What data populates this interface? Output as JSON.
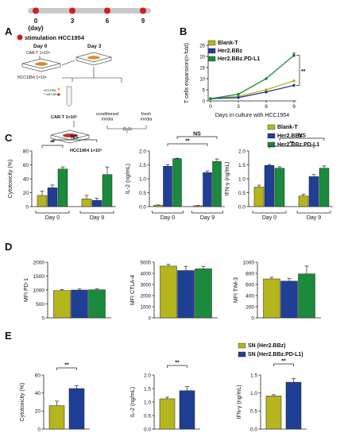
{
  "colors": {
    "blank": "#b5b51e",
    "her2": "#1f3f96",
    "pdl1": "#1a8a3c",
    "red": "#cc1f1f",
    "gray": "#c9c9c9"
  },
  "panels": {
    "A": "A",
    "B": "B",
    "C": "C",
    "D": "D",
    "E": "E"
  },
  "timeline": {
    "ticks": [
      "0",
      "3",
      "6",
      "9"
    ],
    "unit": "(day)"
  },
  "schematic": {
    "stim_label": "stimulation HCC1954",
    "day0": "Day 0",
    "day3": "Day 3",
    "cart": "CAR-T 1×10⁵",
    "hcc": "HCC1954 1×10⁶",
    "tiny1": "HCC1954",
    "tiny2": "T cell CAR-T",
    "cart2": "CAR-T 1×10⁵",
    "cond": "conditioned\nmedia",
    "fresh": "fresh\nmedia",
    "ratio": "(1:1)",
    "hcc2": "HCC1954 1×10⁶"
  },
  "legends": {
    "B": [
      "Blank-T",
      "Her2.BBz",
      "Her2.BBz.PD-L1"
    ],
    "C": [
      "Blank-T",
      "Her2.BBz",
      "Her2.BBz.PD-L1"
    ],
    "E": [
      "SN (Her2.BBz)",
      "SN (Her2.BBz.PD-L1)"
    ]
  },
  "sig": {
    "dstar": "**",
    "ns": "NS"
  },
  "chart_data": [
    {
      "id": "B",
      "type": "line",
      "x": [
        0,
        3,
        6,
        9
      ],
      "xticks": [
        "0",
        "3",
        "6",
        "9"
      ],
      "yticks": [
        "0",
        "5",
        "10",
        "15",
        "20",
        "25"
      ],
      "xlabel": "Days in culture with HCC1954",
      "ylabel": "T cells expansion(n-fold)",
      "ylim": [
        0,
        25
      ],
      "series": [
        {
          "name": "Blank-T",
          "values": [
            1,
            2,
            5,
            9
          ]
        },
        {
          "name": "Her2.BBz",
          "values": [
            1,
            1.5,
            4,
            7
          ]
        },
        {
          "name": "Her2.BBz.PD-L1",
          "values": [
            1,
            3,
            10,
            20.5
          ]
        }
      ]
    },
    {
      "id": "C1",
      "type": "bar",
      "ylabel": "Cytotoxicity (%)",
      "groups": [
        "Day 0",
        "Day 9"
      ],
      "ylim": [
        0,
        80
      ],
      "yticks": [
        "0",
        "20",
        "40",
        "60",
        "80"
      ],
      "series": [
        {
          "name": "Blank-T",
          "values": [
            16,
            11
          ],
          "err": [
            6,
            5
          ]
        },
        {
          "name": "Her2.BBz",
          "values": [
            27,
            9
          ],
          "err": [
            4,
            3
          ]
        },
        {
          "name": "Her2.BBz.PD-L1",
          "values": [
            54,
            46
          ],
          "err": [
            3,
            11
          ]
        }
      ]
    },
    {
      "id": "C2",
      "type": "bar",
      "ylabel": "IL-2 (ng/mL)",
      "groups": [
        "Day 0",
        "Day 9"
      ],
      "ylim": [
        0,
        2.0
      ],
      "yticks": [
        "0.0",
        "0.5",
        "1.0",
        "1.5",
        "2.0"
      ],
      "series": [
        {
          "name": "Blank-T",
          "values": [
            0.05,
            0.03
          ],
          "err": [
            0.01,
            0.01
          ]
        },
        {
          "name": "Her2.BBz",
          "values": [
            1.45,
            1.22
          ],
          "err": [
            0.06,
            0.06
          ]
        },
        {
          "name": "Her2.BBz.PD-L1",
          "values": [
            1.72,
            1.62
          ],
          "err": [
            0.02,
            0.09
          ]
        }
      ]
    },
    {
      "id": "C3",
      "type": "bar",
      "ylabel": "IFN-γ (ng/mL)",
      "groups": [
        "Day 0",
        "Day 9"
      ],
      "ylim": [
        0,
        2.0
      ],
      "yticks": [
        "0.0",
        "0.5",
        "1.0",
        "1.5",
        "2.0"
      ],
      "series": [
        {
          "name": "Blank-T",
          "values": [
            0.7,
            0.38
          ],
          "err": [
            0.07,
            0.06
          ]
        },
        {
          "name": "Her2.BBz",
          "values": [
            1.48,
            1.08
          ],
          "err": [
            0.03,
            0.07
          ]
        },
        {
          "name": "Her2.BBz.PD-L1",
          "values": [
            1.38,
            1.38
          ],
          "err": [
            0.05,
            0.08
          ]
        }
      ]
    },
    {
      "id": "D1",
      "type": "bar",
      "ylabel": "MFI PD-1",
      "ylim": [
        0,
        2000
      ],
      "yticks": [
        "0",
        "500",
        "1000",
        "1500",
        "2000"
      ],
      "series": [
        {
          "name": "Blank-T",
          "values": [
            980
          ],
          "err": [
            40
          ]
        },
        {
          "name": "Her2.BBz",
          "values": [
            1000
          ],
          "err": [
            35
          ]
        },
        {
          "name": "Her2.BBz.PD-L1",
          "values": [
            1010
          ],
          "err": [
            30
          ]
        }
      ]
    },
    {
      "id": "D2",
      "type": "bar",
      "ylabel": "MFI CTLA-4",
      "ylim": [
        0,
        5000
      ],
      "yticks": [
        "0",
        "1000",
        "2000",
        "3000",
        "4000",
        "5000"
      ],
      "series": [
        {
          "name": "Blank-T",
          "values": [
            4650
          ],
          "err": [
            150
          ]
        },
        {
          "name": "Her2.BBz",
          "values": [
            4250
          ],
          "err": [
            380
          ]
        },
        {
          "name": "Her2.BBz.PD-L1",
          "values": [
            4400
          ],
          "err": [
            230
          ]
        }
      ]
    },
    {
      "id": "D3",
      "type": "bar",
      "ylabel": "MFI TIM-3",
      "ylim": [
        0,
        1000
      ],
      "yticks": [
        "0",
        "200",
        "400",
        "600",
        "800",
        "1000"
      ],
      "series": [
        {
          "name": "Blank-T",
          "values": [
            700
          ],
          "err": [
            30
          ]
        },
        {
          "name": "Her2.BBz",
          "values": [
            660
          ],
          "err": [
            50
          ]
        },
        {
          "name": "Her2.BBz.PD-L1",
          "values": [
            790
          ],
          "err": [
            140
          ]
        }
      ]
    },
    {
      "id": "E1",
      "type": "bar",
      "ylabel": "Cytotoxicity (%)",
      "ylim": [
        0,
        60
      ],
      "yticks": [
        "0",
        "20",
        "40",
        "60"
      ],
      "series": [
        {
          "name": "SN (Her2.BBz)",
          "values": [
            26
          ],
          "err": [
            5
          ]
        },
        {
          "name": "SN (Her2.BBz.PD-L1)",
          "values": [
            45
          ],
          "err": [
            3
          ]
        }
      ]
    },
    {
      "id": "E2",
      "type": "bar",
      "ylabel": "IL-2 (ng/mL)",
      "ylim": [
        0,
        2.0
      ],
      "yticks": [
        "0.0",
        "0.5",
        "1.0",
        "1.5",
        "2.0"
      ],
      "series": [
        {
          "name": "SN (Her2.BBz)",
          "values": [
            1.12
          ],
          "err": [
            0.06
          ]
        },
        {
          "name": "SN (Her2.BBz.PD-L1)",
          "values": [
            1.42
          ],
          "err": [
            0.15
          ]
        }
      ]
    },
    {
      "id": "E3",
      "type": "bar",
      "ylabel": "IFN-γ (ng/mL)",
      "ylim": [
        0,
        1.5
      ],
      "yticks": [
        "0.0",
        "0.5",
        "1.0",
        "1.5"
      ],
      "series": [
        {
          "name": "SN (Her2.BBz)",
          "values": [
            0.92
          ],
          "err": [
            0.03
          ]
        },
        {
          "name": "SN (Her2.BBz.PD-L1)",
          "values": [
            1.3
          ],
          "err": [
            0.1
          ]
        }
      ]
    }
  ]
}
